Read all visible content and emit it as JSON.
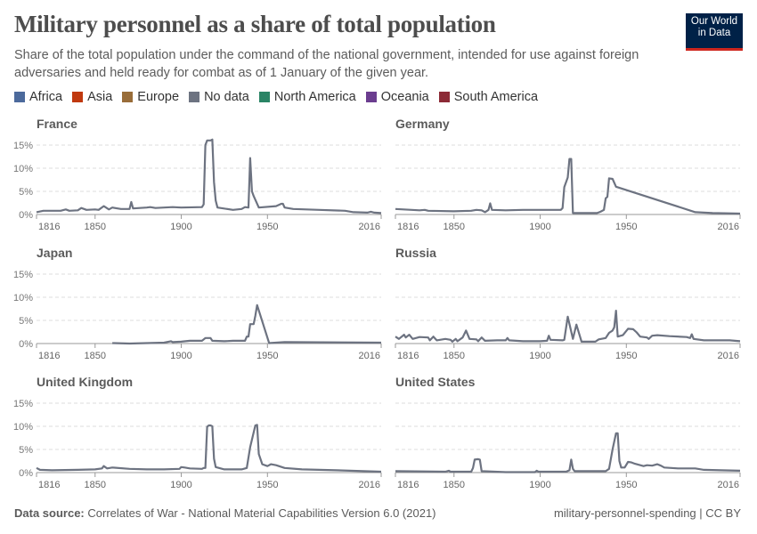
{
  "header": {
    "title": "Military personnel as a share of total population",
    "subtitle": "Share of the total population under the command of the national government, intended for use against foreign adversaries and held ready for combat as of 1 January of the given year.",
    "logo": "Our World in Data"
  },
  "legend": [
    {
      "label": "Africa",
      "color": "#4c6a9c"
    },
    {
      "label": "Asia",
      "color": "#c0390f"
    },
    {
      "label": "Europe",
      "color": "#996d39"
    },
    {
      "label": "No data",
      "color": "#6d7381"
    },
    {
      "label": "North America",
      "color": "#2a8465"
    },
    {
      "label": "Oceania",
      "color": "#6b3d8f"
    },
    {
      "label": "South America",
      "color": "#8c2a36"
    }
  ],
  "footer": {
    "source_label": "Data source:",
    "source": "Correlates of War - National Material Capabilities Version 6.0 (2021)",
    "right": "military-personnel-spending | CC BY"
  },
  "chart_data": {
    "type": "line",
    "xlabel": "",
    "ylabel": "",
    "xlim": [
      1816,
      2016
    ],
    "ylim": [
      0,
      15
    ],
    "xticks": [
      "1816",
      "1850",
      "1900",
      "1950",
      "2016"
    ],
    "yticks": [
      "0%",
      "5%",
      "10%",
      "15%"
    ],
    "grid": true,
    "line_color": "#6d7381",
    "panels": [
      {
        "name": "France",
        "points": [
          [
            1816,
            0.5
          ],
          [
            1820,
            0.8
          ],
          [
            1830,
            0.8
          ],
          [
            1833,
            1.1
          ],
          [
            1835,
            0.8
          ],
          [
            1840,
            0.9
          ],
          [
            1842,
            1.4
          ],
          [
            1845,
            1.0
          ],
          [
            1850,
            1.1
          ],
          [
            1852,
            1.0
          ],
          [
            1855,
            1.8
          ],
          [
            1858,
            1.1
          ],
          [
            1860,
            1.5
          ],
          [
            1865,
            1.2
          ],
          [
            1870,
            1.2
          ],
          [
            1871,
            2.7
          ],
          [
            1872,
            1.3
          ],
          [
            1880,
            1.5
          ],
          [
            1882,
            1.6
          ],
          [
            1885,
            1.4
          ],
          [
            1895,
            1.6
          ],
          [
            1900,
            1.5
          ],
          [
            1912,
            1.6
          ],
          [
            1913,
            2.2
          ],
          [
            1914,
            15
          ],
          [
            1915,
            16
          ],
          [
            1917,
            16
          ],
          [
            1918,
            16.2
          ],
          [
            1919,
            7
          ],
          [
            1920,
            3
          ],
          [
            1921,
            1.5
          ],
          [
            1930,
            1.0
          ],
          [
            1935,
            1.2
          ],
          [
            1937,
            1.6
          ],
          [
            1939,
            1.5
          ],
          [
            1940,
            12.2
          ],
          [
            1941,
            5
          ],
          [
            1942,
            4
          ],
          [
            1945,
            1.5
          ],
          [
            1955,
            1.8
          ],
          [
            1958,
            2.3
          ],
          [
            1959,
            2.3
          ],
          [
            1960,
            1.5
          ],
          [
            1965,
            1.2
          ],
          [
            1980,
            1.0
          ],
          [
            1995,
            0.8
          ],
          [
            2000,
            0.5
          ],
          [
            2008,
            0.4
          ],
          [
            2010,
            0.6
          ],
          [
            2012,
            0.4
          ],
          [
            2016,
            0.3
          ]
        ]
      },
      {
        "name": "Germany",
        "points": [
          [
            1816,
            1.2
          ],
          [
            1830,
            0.9
          ],
          [
            1833,
            1.0
          ],
          [
            1835,
            0.8
          ],
          [
            1850,
            0.7
          ],
          [
            1860,
            0.8
          ],
          [
            1863,
            1.0
          ],
          [
            1866,
            0.9
          ],
          [
            1868,
            0.5
          ],
          [
            1870,
            1.0
          ],
          [
            1871,
            2.4
          ],
          [
            1872,
            1.0
          ],
          [
            1880,
            0.9
          ],
          [
            1890,
            1.0
          ],
          [
            1900,
            1.0
          ],
          [
            1912,
            1.0
          ],
          [
            1913,
            1.4
          ],
          [
            1914,
            5.9
          ],
          [
            1916,
            8
          ],
          [
            1917,
            12
          ],
          [
            1918,
            12
          ],
          [
            1919,
            0.3
          ],
          [
            1933,
            0.3
          ],
          [
            1935,
            0.6
          ],
          [
            1937,
            1.0
          ],
          [
            1938,
            3.5
          ],
          [
            1939,
            3.8
          ],
          [
            1940,
            7.8
          ],
          [
            1942,
            7.7
          ],
          [
            1944,
            6
          ],
          [
            1990,
            0.5
          ],
          [
            2000,
            0.3
          ],
          [
            2016,
            0.2
          ]
        ]
      },
      {
        "name": "Japan",
        "points": [
          [
            1860,
            0.1
          ],
          [
            1870,
            0
          ],
          [
            1880,
            0.1
          ],
          [
            1890,
            0.2
          ],
          [
            1894,
            0.5
          ],
          [
            1895,
            0.3
          ],
          [
            1900,
            0.4
          ],
          [
            1905,
            0.6
          ],
          [
            1912,
            0.6
          ],
          [
            1914,
            1.2
          ],
          [
            1917,
            1.2
          ],
          [
            1918,
            0.6
          ],
          [
            1925,
            0.5
          ],
          [
            1930,
            0.6
          ],
          [
            1937,
            0.6
          ],
          [
            1938,
            1.5
          ],
          [
            1939,
            1.5
          ],
          [
            1940,
            4.2
          ],
          [
            1942,
            4.2
          ],
          [
            1943,
            6
          ],
          [
            1944,
            8.3
          ],
          [
            1951,
            0.1
          ],
          [
            1960,
            0.3
          ],
          [
            2016,
            0.2
          ]
        ]
      },
      {
        "name": "Russia",
        "points": [
          [
            1816,
            1.5
          ],
          [
            1818,
            1.0
          ],
          [
            1821,
            1.9
          ],
          [
            1822,
            1.3
          ],
          [
            1824,
            1.9
          ],
          [
            1826,
            1.0
          ],
          [
            1830,
            1.4
          ],
          [
            1835,
            1.3
          ],
          [
            1836,
            0.7
          ],
          [
            1838,
            1.5
          ],
          [
            1840,
            0.7
          ],
          [
            1845,
            1.0
          ],
          [
            1848,
            0.8
          ],
          [
            1849,
            0.4
          ],
          [
            1851,
            1.0
          ],
          [
            1852,
            0.5
          ],
          [
            1855,
            1.3
          ],
          [
            1857,
            2.8
          ],
          [
            1859,
            1.0
          ],
          [
            1863,
            0.9
          ],
          [
            1864,
            0.5
          ],
          [
            1866,
            1.3
          ],
          [
            1868,
            0.6
          ],
          [
            1875,
            0.7
          ],
          [
            1880,
            0.7
          ],
          [
            1881,
            1.2
          ],
          [
            1882,
            0.7
          ],
          [
            1890,
            0.5
          ],
          [
            1900,
            0.5
          ],
          [
            1904,
            0.6
          ],
          [
            1905,
            1.7
          ],
          [
            1906,
            0.8
          ],
          [
            1913,
            0.7
          ],
          [
            1914,
            0.8
          ],
          [
            1916,
            5.8
          ],
          [
            1919,
            1.0
          ],
          [
            1921,
            4.1
          ],
          [
            1924,
            0.4
          ],
          [
            1932,
            0.4
          ],
          [
            1934,
            0.9
          ],
          [
            1938,
            1.2
          ],
          [
            1940,
            2.3
          ],
          [
            1942,
            2.8
          ],
          [
            1943,
            3.5
          ],
          [
            1944,
            7.1
          ],
          [
            1945,
            1.5
          ],
          [
            1948,
            1.8
          ],
          [
            1951,
            3.2
          ],
          [
            1954,
            3.1
          ],
          [
            1956,
            2.4
          ],
          [
            1958,
            1.5
          ],
          [
            1962,
            1.3
          ],
          [
            1963,
            1.0
          ],
          [
            1965,
            1.7
          ],
          [
            1968,
            1.8
          ],
          [
            1975,
            1.6
          ],
          [
            1985,
            1.4
          ],
          [
            1987,
            1.2
          ],
          [
            1988,
            2.0
          ],
          [
            1989,
            1.0
          ],
          [
            1995,
            0.7
          ],
          [
            2010,
            0.7
          ],
          [
            2016,
            0.5
          ]
        ]
      },
      {
        "name": "United Kingdom",
        "points": [
          [
            1816,
            1.0
          ],
          [
            1818,
            0.6
          ],
          [
            1825,
            0.5
          ],
          [
            1840,
            0.6
          ],
          [
            1850,
            0.7
          ],
          [
            1854,
            0.9
          ],
          [
            1855,
            1.4
          ],
          [
            1857,
            0.9
          ],
          [
            1860,
            1.1
          ],
          [
            1870,
            0.8
          ],
          [
            1880,
            0.7
          ],
          [
            1890,
            0.7
          ],
          [
            1899,
            0.8
          ],
          [
            1900,
            1.2
          ],
          [
            1902,
            1.1
          ],
          [
            1905,
            0.9
          ],
          [
            1912,
            0.8
          ],
          [
            1913,
            1.0
          ],
          [
            1914,
            1.0
          ],
          [
            1915,
            9.9
          ],
          [
            1916,
            10.2
          ],
          [
            1917,
            10.2
          ],
          [
            1918,
            10
          ],
          [
            1919,
            3
          ],
          [
            1920,
            1.2
          ],
          [
            1925,
            0.7
          ],
          [
            1935,
            0.7
          ],
          [
            1938,
            1.0
          ],
          [
            1940,
            5.5
          ],
          [
            1943,
            10.2
          ],
          [
            1944,
            10.3
          ],
          [
            1945,
            4
          ],
          [
            1947,
            1.8
          ],
          [
            1950,
            1.4
          ],
          [
            1952,
            1.8
          ],
          [
            1955,
            1.6
          ],
          [
            1960,
            1.0
          ],
          [
            1970,
            0.7
          ],
          [
            1990,
            0.5
          ],
          [
            2016,
            0.2
          ]
        ]
      },
      {
        "name": "United States",
        "points": [
          [
            1816,
            0.3
          ],
          [
            1845,
            0.2
          ],
          [
            1847,
            0.4
          ],
          [
            1848,
            0.2
          ],
          [
            1860,
            0.2
          ],
          [
            1861,
            1.0
          ],
          [
            1862,
            2.8
          ],
          [
            1864,
            2.9
          ],
          [
            1865,
            2.8
          ],
          [
            1866,
            0.3
          ],
          [
            1880,
            0.1
          ],
          [
            1897,
            0.1
          ],
          [
            1898,
            0.4
          ],
          [
            1899,
            0.2
          ],
          [
            1915,
            0.2
          ],
          [
            1917,
            0.5
          ],
          [
            1918,
            2.8
          ],
          [
            1919,
            0.8
          ],
          [
            1920,
            0.3
          ],
          [
            1938,
            0.3
          ],
          [
            1940,
            0.8
          ],
          [
            1942,
            5.0
          ],
          [
            1944,
            8.5
          ],
          [
            1945,
            8.5
          ],
          [
            1946,
            2.5
          ],
          [
            1947,
            1.1
          ],
          [
            1949,
            1.1
          ],
          [
            1951,
            2.3
          ],
          [
            1953,
            2.2
          ],
          [
            1955,
            1.9
          ],
          [
            1960,
            1.4
          ],
          [
            1962,
            1.6
          ],
          [
            1965,
            1.5
          ],
          [
            1968,
            1.8
          ],
          [
            1970,
            1.5
          ],
          [
            1972,
            1.1
          ],
          [
            1980,
            0.9
          ],
          [
            1990,
            0.9
          ],
          [
            1995,
            0.6
          ],
          [
            2005,
            0.5
          ],
          [
            2016,
            0.4
          ]
        ]
      }
    ]
  }
}
